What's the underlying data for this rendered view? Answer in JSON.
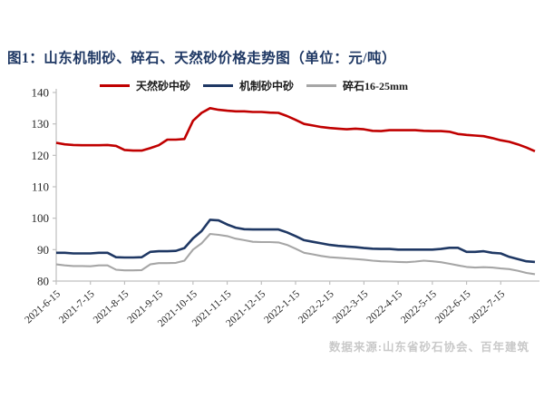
{
  "figure": {
    "title": "图1：山东机制砂、碎石、天然砂价格走势图（单位：元/吨）",
    "title_color": "#1F3864",
    "source_note": "数据来源:山东省砂石协会、百年建筑",
    "source_color": "#C9C9C9"
  },
  "chart_data": {
    "type": "line",
    "title": "山东机制砂、碎石、天然砂价格走势图",
    "unit": "元/吨",
    "grid": false,
    "legend_position": "top",
    "axis_color": "#BFBFBF",
    "tick_label_color": "#262626",
    "ylim": [
      80,
      140
    ],
    "yticks": [
      80,
      90,
      100,
      110,
      120,
      130,
      140
    ],
    "x": [
      "2021-6-15",
      "2021-6-22",
      "2021-6-29",
      "2021-7-6",
      "2021-7-13",
      "2021-7-20",
      "2021-7-27",
      "2021-8-3",
      "2021-8-10",
      "2021-8-17",
      "2021-8-24",
      "2021-8-31",
      "2021-9-7",
      "2021-9-14",
      "2021-9-21",
      "2021-9-28",
      "2021-10-5",
      "2021-10-12",
      "2021-10-19",
      "2021-10-26",
      "2021-11-2",
      "2021-11-9",
      "2021-11-16",
      "2021-11-23",
      "2021-11-30",
      "2021-12-7",
      "2021-12-14",
      "2021-12-21",
      "2021-12-28",
      "2022-1-4",
      "2022-1-11",
      "2022-1-18",
      "2022-1-25",
      "2022-2-1",
      "2022-2-8",
      "2022-2-15",
      "2022-2-22",
      "2022-3-1",
      "2022-3-8",
      "2022-3-15",
      "2022-3-22",
      "2022-3-29",
      "2022-4-5",
      "2022-4-12",
      "2022-4-19",
      "2022-4-26",
      "2022-5-3",
      "2022-5-10",
      "2022-5-17",
      "2022-5-24",
      "2022-5-31",
      "2022-6-7",
      "2022-6-14",
      "2022-6-21",
      "2022-6-28",
      "2022-7-5",
      "2022-7-12"
    ],
    "x_tick_labels": [
      "2021-6-15",
      "2021-7-15",
      "2021-8-15",
      "2021-9-15",
      "2021-10-15",
      "2021-11-15",
      "2021-12-15",
      "2022-1-15",
      "2022-2-15",
      "2022-3-15",
      "2022-4-15",
      "2022-5-15",
      "2022-6-15",
      "2022-7-15"
    ],
    "x_tick_step": 4,
    "series": [
      {
        "name": "天然砂中砂",
        "color": "#C00000",
        "width": 2.6,
        "values": [
          124,
          123.5,
          123.3,
          123.2,
          123.2,
          123.2,
          123.3,
          123,
          121.7,
          121.5,
          121.5,
          122.3,
          123.2,
          125,
          125,
          125.2,
          131,
          133.5,
          135,
          134.5,
          134.2,
          134,
          134,
          133.8,
          133.8,
          133.6,
          133.5,
          132.5,
          131.3,
          130,
          129.5,
          129,
          128.7,
          128.5,
          128.3,
          128.5,
          128.3,
          127.8,
          127.7,
          128,
          128,
          128,
          128,
          127.8,
          127.7,
          127.7,
          127.5,
          126.8,
          126.5,
          126.3,
          126.1,
          125.5,
          124.8,
          124.3,
          123.5,
          122.5,
          121.3
        ]
      },
      {
        "name": "机制砂中砂",
        "color": "#1F3864",
        "width": 2.6,
        "values": [
          89,
          89,
          88.8,
          88.8,
          88.8,
          89,
          89,
          87.6,
          87.5,
          87.5,
          87.6,
          89.3,
          89.5,
          89.5,
          89.6,
          90.5,
          93.6,
          95.9,
          99.5,
          99.3,
          98,
          97,
          96.5,
          96.4,
          96.4,
          96.4,
          96.4,
          95.5,
          94.3,
          93,
          92.5,
          92,
          91.5,
          91.2,
          91,
          90.8,
          90.5,
          90.3,
          90.2,
          90.2,
          90,
          90,
          90,
          90,
          90,
          90.2,
          90.6,
          90.6,
          89.3,
          89.3,
          89.5,
          89,
          88.8,
          87.7,
          87,
          86.3,
          86.1
        ]
      },
      {
        "name": "碎石16-25mm",
        "color": "#A6A6A6",
        "width": 2.1,
        "values": [
          85.3,
          85,
          84.8,
          84.8,
          84.7,
          85,
          85,
          83.6,
          83.4,
          83.4,
          83.5,
          85.3,
          85.7,
          85.7,
          85.8,
          86.5,
          90,
          92,
          95,
          94.7,
          94.3,
          93.5,
          93,
          92.5,
          92.4,
          92.4,
          92.3,
          91.5,
          90.3,
          89,
          88.5,
          88,
          87.6,
          87.4,
          87.2,
          87,
          86.8,
          86.5,
          86.3,
          86.2,
          86.1,
          86,
          86.2,
          86.5,
          86.3,
          86,
          85.5,
          85,
          84.5,
          84.3,
          84.4,
          84.3,
          84,
          83.8,
          83.3,
          82.6,
          82.2
        ]
      }
    ]
  }
}
